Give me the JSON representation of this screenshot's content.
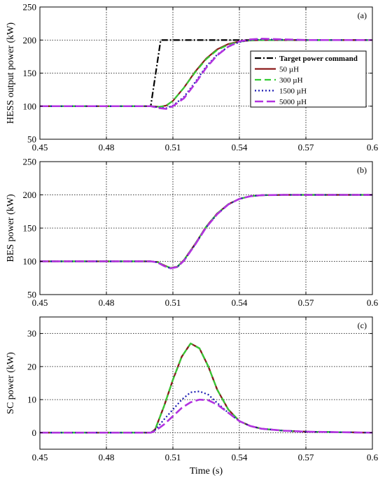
{
  "chart_data": [
    {
      "type": "line",
      "panel_tag": "(a)",
      "ylabel": "HESS output power (kW)",
      "xlabel": "",
      "xlim": [
        0.45,
        0.6
      ],
      "ylim": [
        50,
        250
      ],
      "xticks": [
        "0.45",
        "0.48",
        "0.51",
        "0.54",
        "0.57",
        "0.6"
      ],
      "yticks": [
        "50",
        "100",
        "150",
        "200",
        "250"
      ],
      "grid": true,
      "legend_position": "right",
      "series": [
        {
          "name": "Target power command",
          "color": "#000000",
          "dash": "dashdot",
          "x": [
            0.45,
            0.5,
            0.5045,
            0.505,
            0.6
          ],
          "y": [
            100,
            100,
            200,
            200,
            200
          ]
        },
        {
          "name": "50 µH",
          "color": "#8B1A1A",
          "dash": "solid",
          "x": [
            0.45,
            0.5,
            0.504,
            0.507,
            0.51,
            0.515,
            0.52,
            0.525,
            0.53,
            0.535,
            0.54,
            0.545,
            0.55,
            0.56,
            0.57,
            0.6
          ],
          "y": [
            100,
            100,
            99,
            101,
            108,
            128,
            152,
            172,
            186,
            194,
            198,
            199.5,
            200,
            200,
            200,
            200
          ]
        },
        {
          "name": "300 µH",
          "color": "#33CC33",
          "dash": "dash",
          "x": [
            0.45,
            0.5,
            0.504,
            0.507,
            0.51,
            0.515,
            0.52,
            0.525,
            0.53,
            0.535,
            0.54,
            0.545,
            0.55,
            0.56,
            0.57,
            0.6
          ],
          "y": [
            100,
            100,
            99,
            101,
            108,
            128,
            151,
            171,
            185,
            193,
            197.5,
            199.5,
            200,
            200,
            200,
            200
          ]
        },
        {
          "name": "1500 µH",
          "color": "#1A1AB3",
          "dash": "dot",
          "x": [
            0.45,
            0.5,
            0.504,
            0.507,
            0.51,
            0.515,
            0.52,
            0.525,
            0.53,
            0.535,
            0.54,
            0.545,
            0.55,
            0.56,
            0.57,
            0.6
          ],
          "y": [
            100,
            100,
            98,
            97,
            101,
            114,
            136,
            160,
            178,
            190,
            197,
            200,
            201,
            200.5,
            200,
            200
          ]
        },
        {
          "name": "5000 µH",
          "color": "#B233E0",
          "dash": "longdash",
          "x": [
            0.45,
            0.5,
            0.504,
            0.507,
            0.51,
            0.515,
            0.52,
            0.525,
            0.53,
            0.535,
            0.54,
            0.545,
            0.55,
            0.56,
            0.57,
            0.6
          ],
          "y": [
            100,
            100,
            97,
            96,
            100,
            112,
            134,
            158,
            177,
            190,
            198,
            201,
            202,
            201,
            200,
            200
          ]
        }
      ],
      "legend": {
        "entries": [
          "Target power command",
          "50 µH",
          "300 µH",
          "1500 µH",
          "5000 µH"
        ]
      }
    },
    {
      "type": "line",
      "panel_tag": "(b)",
      "ylabel": "BES power (kW)",
      "xlabel": "",
      "xlim": [
        0.45,
        0.6
      ],
      "ylim": [
        50,
        250
      ],
      "xticks": [
        "0.45",
        "0.48",
        "0.51",
        "0.54",
        "0.57",
        "0.6"
      ],
      "yticks": [
        "50",
        "100",
        "150",
        "200",
        "250"
      ],
      "grid": true,
      "series": [
        {
          "name": "Target power command",
          "color": "#000000",
          "dash": "dashdot",
          "x": [
            0.45,
            0.5,
            0.503,
            0.506,
            0.509,
            0.512,
            0.515,
            0.52,
            0.525,
            0.53,
            0.535,
            0.54,
            0.545,
            0.55,
            0.56,
            0.57,
            0.6
          ],
          "y": [
            100,
            100,
            99,
            94,
            90,
            92,
            102,
            126,
            152,
            172,
            186,
            194,
            198,
            199.5,
            200,
            200,
            200
          ]
        },
        {
          "name": "50 µH",
          "color": "#8B1A1A",
          "dash": "solid",
          "x": [
            0.45,
            0.5,
            0.503,
            0.506,
            0.509,
            0.512,
            0.515,
            0.52,
            0.525,
            0.53,
            0.535,
            0.54,
            0.545,
            0.55,
            0.56,
            0.57,
            0.6
          ],
          "y": [
            100,
            100,
            99,
            94,
            90,
            92,
            102,
            126,
            152,
            172,
            186,
            194,
            198,
            199.5,
            200,
            200,
            200
          ]
        },
        {
          "name": "300 µH",
          "color": "#33CC33",
          "dash": "dash",
          "x": [
            0.45,
            0.5,
            0.503,
            0.506,
            0.509,
            0.512,
            0.515,
            0.52,
            0.525,
            0.53,
            0.535,
            0.54,
            0.545,
            0.55,
            0.56,
            0.57,
            0.6
          ],
          "y": [
            100,
            100,
            99,
            94,
            90,
            92,
            102,
            126,
            152,
            172,
            186,
            194,
            198,
            199.5,
            200,
            200,
            200
          ]
        },
        {
          "name": "1500 µH",
          "color": "#1A1AB3",
          "dash": "dot",
          "x": [
            0.45,
            0.5,
            0.503,
            0.506,
            0.509,
            0.512,
            0.515,
            0.52,
            0.525,
            0.53,
            0.535,
            0.54,
            0.545,
            0.55,
            0.56,
            0.57,
            0.6
          ],
          "y": [
            100,
            100,
            98.5,
            93,
            89.5,
            91.5,
            101,
            125,
            151,
            171,
            185.5,
            194,
            198,
            199.5,
            200,
            200,
            200
          ]
        },
        {
          "name": "5000 µH",
          "color": "#B233E0",
          "dash": "longdash",
          "x": [
            0.45,
            0.5,
            0.503,
            0.506,
            0.509,
            0.512,
            0.515,
            0.52,
            0.525,
            0.53,
            0.535,
            0.54,
            0.545,
            0.55,
            0.56,
            0.57,
            0.6
          ],
          "y": [
            100,
            100,
            98.5,
            93,
            89.5,
            91.5,
            101,
            125,
            151,
            171,
            185.5,
            194,
            198,
            199.5,
            200,
            200,
            200
          ]
        }
      ]
    },
    {
      "type": "line",
      "panel_tag": "(c)",
      "ylabel": "SC power (kW)",
      "xlabel": "Time (s)",
      "xlim": [
        0.45,
        0.6
      ],
      "ylim": [
        -5,
        35
      ],
      "xticks": [
        "0.45",
        "0.48",
        "0.51",
        "0.54",
        "0.57",
        "0.6"
      ],
      "yticks": [
        "0",
        "10",
        "20",
        "30"
      ],
      "ytick_values": [
        0,
        10,
        20,
        30
      ],
      "grid": true,
      "series": [
        {
          "name": "Target power command",
          "color": "#000000",
          "dash": "dashdot",
          "x": [
            0.45,
            0.5,
            0.502,
            0.506,
            0.51,
            0.514,
            0.518,
            0.522,
            0.526,
            0.53,
            0.535,
            0.54,
            0.545,
            0.55,
            0.56,
            0.57,
            0.6
          ],
          "y": [
            0,
            0,
            1,
            8,
            16,
            23,
            27,
            25.5,
            20,
            13,
            7,
            3.5,
            2,
            1.2,
            0.6,
            0.3,
            0
          ]
        },
        {
          "name": "50 µH",
          "color": "#8B1A1A",
          "dash": "solid",
          "x": [
            0.45,
            0.5,
            0.502,
            0.506,
            0.51,
            0.514,
            0.518,
            0.522,
            0.526,
            0.53,
            0.535,
            0.54,
            0.545,
            0.55,
            0.56,
            0.57,
            0.6
          ],
          "y": [
            0,
            0,
            1,
            8,
            16,
            23,
            27,
            25.5,
            20,
            13,
            7,
            3.5,
            2,
            1.2,
            0.6,
            0.3,
            0
          ]
        },
        {
          "name": "300 µH",
          "color": "#33CC33",
          "dash": "dash",
          "x": [
            0.45,
            0.5,
            0.502,
            0.506,
            0.51,
            0.514,
            0.518,
            0.522,
            0.526,
            0.53,
            0.535,
            0.54,
            0.545,
            0.55,
            0.56,
            0.57,
            0.6
          ],
          "y": [
            0,
            0,
            1,
            8,
            16,
            23,
            27,
            25.5,
            20,
            13,
            7,
            3.5,
            2,
            1.2,
            0.6,
            0.3,
            0
          ]
        },
        {
          "name": "1500 µH",
          "color": "#1A1AB3",
          "dash": "dot",
          "x": [
            0.45,
            0.5,
            0.502,
            0.506,
            0.51,
            0.514,
            0.518,
            0.522,
            0.526,
            0.53,
            0.535,
            0.54,
            0.545,
            0.55,
            0.56,
            0.57,
            0.6
          ],
          "y": [
            0,
            0,
            0.8,
            4,
            7,
            10,
            12.2,
            12.5,
            11.5,
            9,
            6,
            3.5,
            2,
            1.2,
            0.6,
            0.3,
            0
          ]
        },
        {
          "name": "5000 µH",
          "color": "#B233E0",
          "dash": "longdash",
          "x": [
            0.45,
            0.5,
            0.502,
            0.506,
            0.51,
            0.514,
            0.518,
            0.522,
            0.526,
            0.53,
            0.535,
            0.54,
            0.545,
            0.55,
            0.56,
            0.57,
            0.6
          ],
          "y": [
            0,
            0,
            0.5,
            2.5,
            5,
            7.5,
            9.2,
            10,
            9.8,
            8.5,
            6,
            3.5,
            2,
            1.2,
            0.6,
            0.3,
            0
          ]
        }
      ]
    }
  ]
}
